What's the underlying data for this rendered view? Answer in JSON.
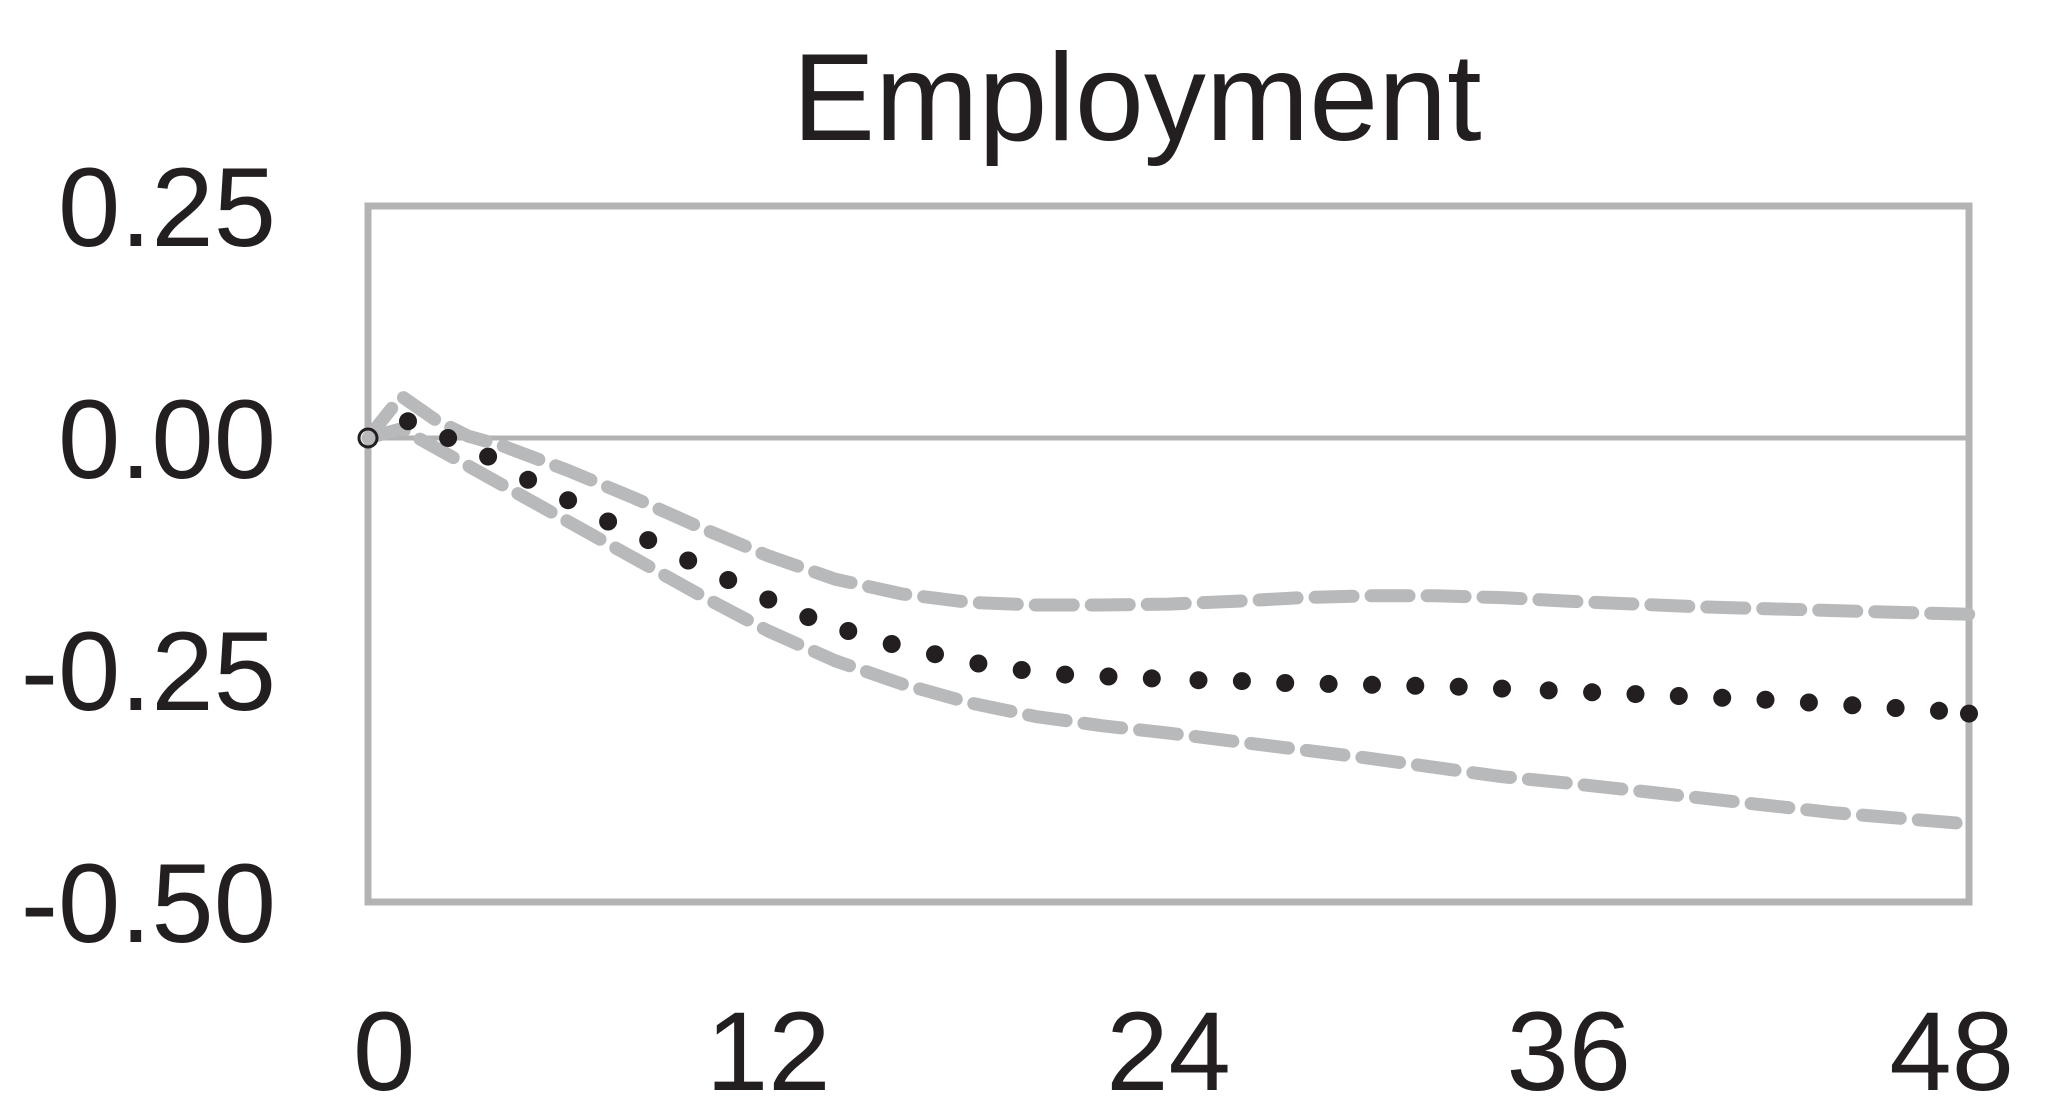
{
  "chart_data": {
    "type": "line",
    "title": "Employment",
    "xlabel": "",
    "ylabel": "",
    "xlim": [
      0,
      48
    ],
    "ylim": [
      -0.5,
      0.25
    ],
    "x_ticks": [
      0,
      12,
      24,
      36,
      48
    ],
    "x_tick_labels": [
      "0",
      "12",
      "24",
      "36",
      "48"
    ],
    "y_ticks": [
      0.25,
      0.0,
      -0.25,
      -0.5
    ],
    "y_tick_labels": [
      "0.25",
      "0.00",
      "-0.25",
      "-0.50"
    ],
    "reference_line_y": 0.0,
    "grid": false,
    "legend": "none",
    "colors": {
      "frame": "#b3b3b3",
      "estimate": "#231f20",
      "bands": "#b8b9bb",
      "text": "#231f20"
    },
    "series": [
      {
        "role": "estimate",
        "style": "dotted",
        "x": [
          0,
          1.2,
          2.4,
          3.6,
          4.8,
          6,
          7.2,
          8.4,
          9.6,
          10.8,
          12,
          13.2,
          14.4,
          15.7,
          17,
          18.3,
          19.6,
          20.9,
          22.2,
          23.5,
          24.9,
          26.2,
          27.5,
          28.8,
          30.1,
          31.4,
          32.7,
          34,
          35.4,
          36.7,
          38,
          39.3,
          40.6,
          41.9,
          43.2,
          44.5,
          45.8,
          47.1,
          48
        ],
        "y": [
          0.0,
          0.018,
          0.0,
          -0.02,
          -0.045,
          -0.067,
          -0.09,
          -0.11,
          -0.132,
          -0.153,
          -0.174,
          -0.193,
          -0.208,
          -0.222,
          -0.233,
          -0.243,
          -0.25,
          -0.255,
          -0.257,
          -0.259,
          -0.261,
          -0.262,
          -0.264,
          -0.265,
          -0.266,
          -0.267,
          -0.268,
          -0.27,
          -0.272,
          -0.274,
          -0.276,
          -0.278,
          -0.28,
          -0.282,
          -0.285,
          -0.288,
          -0.291,
          -0.294,
          -0.297
        ]
      },
      {
        "role": "upper band",
        "style": "dashed",
        "x": [
          0,
          1,
          2,
          3,
          4,
          6,
          8,
          10,
          12,
          14,
          16,
          18,
          20,
          22,
          24,
          26,
          28,
          30,
          32,
          34,
          36,
          38,
          40,
          42,
          44,
          46,
          48
        ],
        "y": [
          0.0,
          0.045,
          0.02,
          0.002,
          -0.008,
          -0.035,
          -0.065,
          -0.097,
          -0.127,
          -0.152,
          -0.168,
          -0.177,
          -0.18,
          -0.18,
          -0.179,
          -0.176,
          -0.172,
          -0.17,
          -0.17,
          -0.172,
          -0.176,
          -0.179,
          -0.182,
          -0.184,
          -0.186,
          -0.188,
          -0.19
        ]
      },
      {
        "role": "lower band",
        "style": "dashed",
        "x": [
          0,
          1,
          2,
          3,
          4,
          6,
          8,
          10,
          12,
          14,
          16,
          18,
          20,
          22,
          24,
          26,
          28,
          30,
          32,
          34,
          36,
          38,
          40,
          42,
          44,
          46,
          48
        ],
        "y": [
          0.0,
          0.01,
          -0.01,
          -0.03,
          -0.05,
          -0.09,
          -0.13,
          -0.17,
          -0.208,
          -0.24,
          -0.265,
          -0.285,
          -0.3,
          -0.31,
          -0.318,
          -0.327,
          -0.336,
          -0.345,
          -0.355,
          -0.365,
          -0.372,
          -0.38,
          -0.388,
          -0.396,
          -0.404,
          -0.41,
          -0.416
        ]
      }
    ]
  }
}
